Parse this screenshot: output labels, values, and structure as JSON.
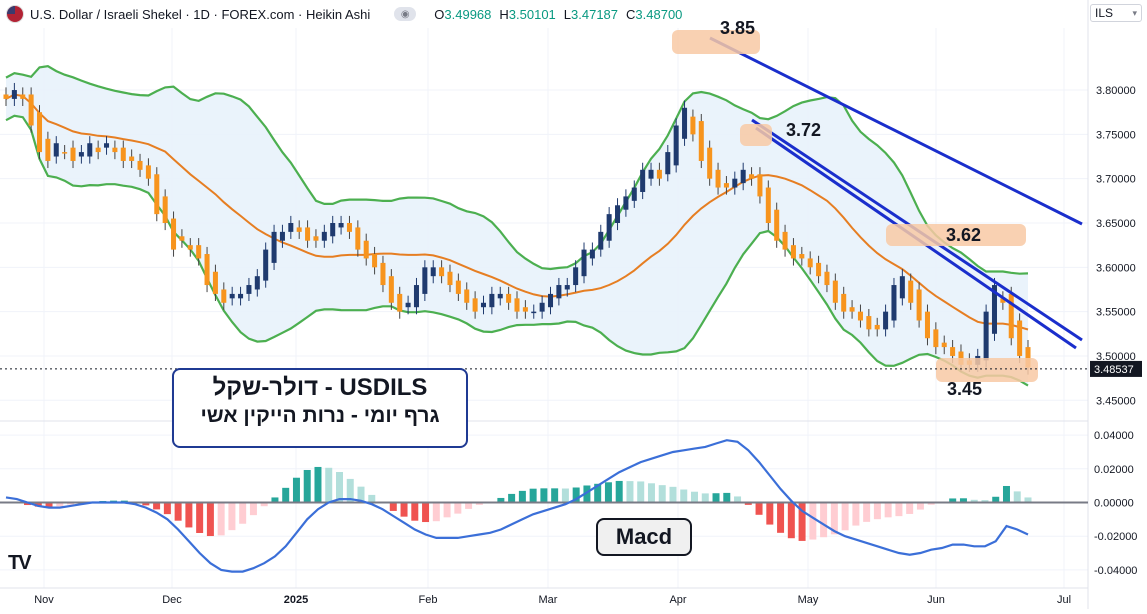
{
  "header": {
    "title": "U.S. Dollar / Israeli Shekel · 1D · FOREX.com · Heikin Ashi",
    "o_label": "O",
    "o_value": "3.49968",
    "h_label": "H",
    "h_value": "3.50101",
    "l_label": "L",
    "l_value": "3.47187",
    "c_label": "C",
    "c_value": "3.48700",
    "currency": "ILS"
  },
  "annotations": {
    "title_line1": "USDILS - דולר-שקל",
    "title_line2": "גרף   יומי  - נרות הייקין אשי",
    "macd_label": "Macd",
    "peak_1": "3.85",
    "peak_2": "3.72",
    "peak_3": "3.62",
    "low_1": "3.45"
  },
  "colors": {
    "up_candle": "#1f3a6e",
    "down_candle": "#f7941d",
    "bollinger_band": "#4caf50",
    "bollinger_fill": "#e8f2fb",
    "sma_line": "#e67e22",
    "trend_line": "#1a2ecc",
    "macd_line": "#3b6fd8",
    "hist_pos_strong": "#26a69a",
    "hist_pos_weak": "#b2dfdb",
    "hist_neg_strong": "#ef5350",
    "hist_neg_weak": "#ffcdd2",
    "highlight": "#f8c9a4"
  },
  "chart_data": {
    "type": "candlestick",
    "price_axis": {
      "ylim": [
        3.43,
        3.87
      ],
      "ticks": [
        "3.45000",
        "3.50000",
        "3.55000",
        "3.60000",
        "3.65000",
        "3.70000",
        "3.75000",
        "3.80000"
      ],
      "last_price": "3.48537"
    },
    "macd_axis": {
      "ylim": [
        -0.046,
        0.046
      ],
      "ticks": [
        "0.04000",
        "0.02000",
        "0.00000",
        "-0.02000",
        "-0.04000"
      ]
    },
    "x_ticks": [
      "Nov",
      "Dec",
      "2025",
      "Feb",
      "Mar",
      "Apr",
      "May",
      "Jun",
      "Jul"
    ],
    "close": [
      3.79,
      3.8,
      3.79,
      3.76,
      3.73,
      3.72,
      3.74,
      3.73,
      3.72,
      3.73,
      3.74,
      3.73,
      3.74,
      3.73,
      3.72,
      3.72,
      3.71,
      3.7,
      3.66,
      3.65,
      3.62,
      3.63,
      3.62,
      3.61,
      3.58,
      3.57,
      3.56,
      3.57,
      3.57,
      3.58,
      3.59,
      3.62,
      3.64,
      3.64,
      3.65,
      3.64,
      3.63,
      3.63,
      3.64,
      3.65,
      3.65,
      3.64,
      3.62,
      3.61,
      3.6,
      3.58,
      3.56,
      3.55,
      3.56,
      3.58,
      3.6,
      3.6,
      3.59,
      3.58,
      3.57,
      3.56,
      3.55,
      3.56,
      3.57,
      3.57,
      3.56,
      3.55,
      3.55,
      3.55,
      3.56,
      3.57,
      3.58,
      3.58,
      3.6,
      3.62,
      3.62,
      3.64,
      3.66,
      3.67,
      3.68,
      3.69,
      3.71,
      3.71,
      3.7,
      3.73,
      3.76,
      3.78,
      3.75,
      3.72,
      3.7,
      3.69,
      3.69,
      3.7,
      3.71,
      3.7,
      3.68,
      3.65,
      3.63,
      3.62,
      3.61,
      3.61,
      3.6,
      3.59,
      3.58,
      3.56,
      3.55,
      3.55,
      3.54,
      3.53,
      3.53,
      3.55,
      3.58,
      3.59,
      3.56,
      3.54,
      3.52,
      3.51,
      3.51,
      3.5,
      3.49,
      3.49,
      3.5,
      3.55,
      3.58,
      3.56,
      3.52,
      3.5,
      3.487
    ],
    "macd": [
      0.003,
      0.002,
      0.0,
      -0.002,
      -0.003,
      -0.003,
      -0.002,
      -0.001,
      0.0,
      0.0,
      0.0,
      0.0,
      -0.001,
      -0.003,
      -0.006,
      -0.01,
      -0.016,
      -0.023,
      -0.03,
      -0.036,
      -0.04,
      -0.041,
      -0.041,
      -0.039,
      -0.036,
      -0.032,
      -0.026,
      -0.018,
      -0.01,
      -0.004,
      0.0,
      0.002,
      0.002,
      0.001,
      -0.001,
      -0.004,
      -0.008,
      -0.012,
      -0.016,
      -0.019,
      -0.021,
      -0.021,
      -0.021,
      -0.02,
      -0.019,
      -0.018,
      -0.016,
      -0.013,
      -0.01,
      -0.007,
      -0.005,
      -0.003,
      -0.001,
      0.002,
      0.006,
      0.01,
      0.014,
      0.018,
      0.021,
      0.024,
      0.026,
      0.028,
      0.03,
      0.031,
      0.032,
      0.033,
      0.035,
      0.037,
      0.036,
      0.031,
      0.024,
      0.016,
      0.008,
      0.001,
      -0.005,
      -0.009,
      -0.013,
      -0.017,
      -0.02,
      -0.022,
      -0.024,
      -0.026,
      -0.028,
      -0.03,
      -0.031,
      -0.03,
      -0.028,
      -0.027,
      -0.025,
      -0.025,
      -0.026,
      -0.026,
      -0.023,
      -0.014,
      -0.016,
      -0.019
    ]
  }
}
